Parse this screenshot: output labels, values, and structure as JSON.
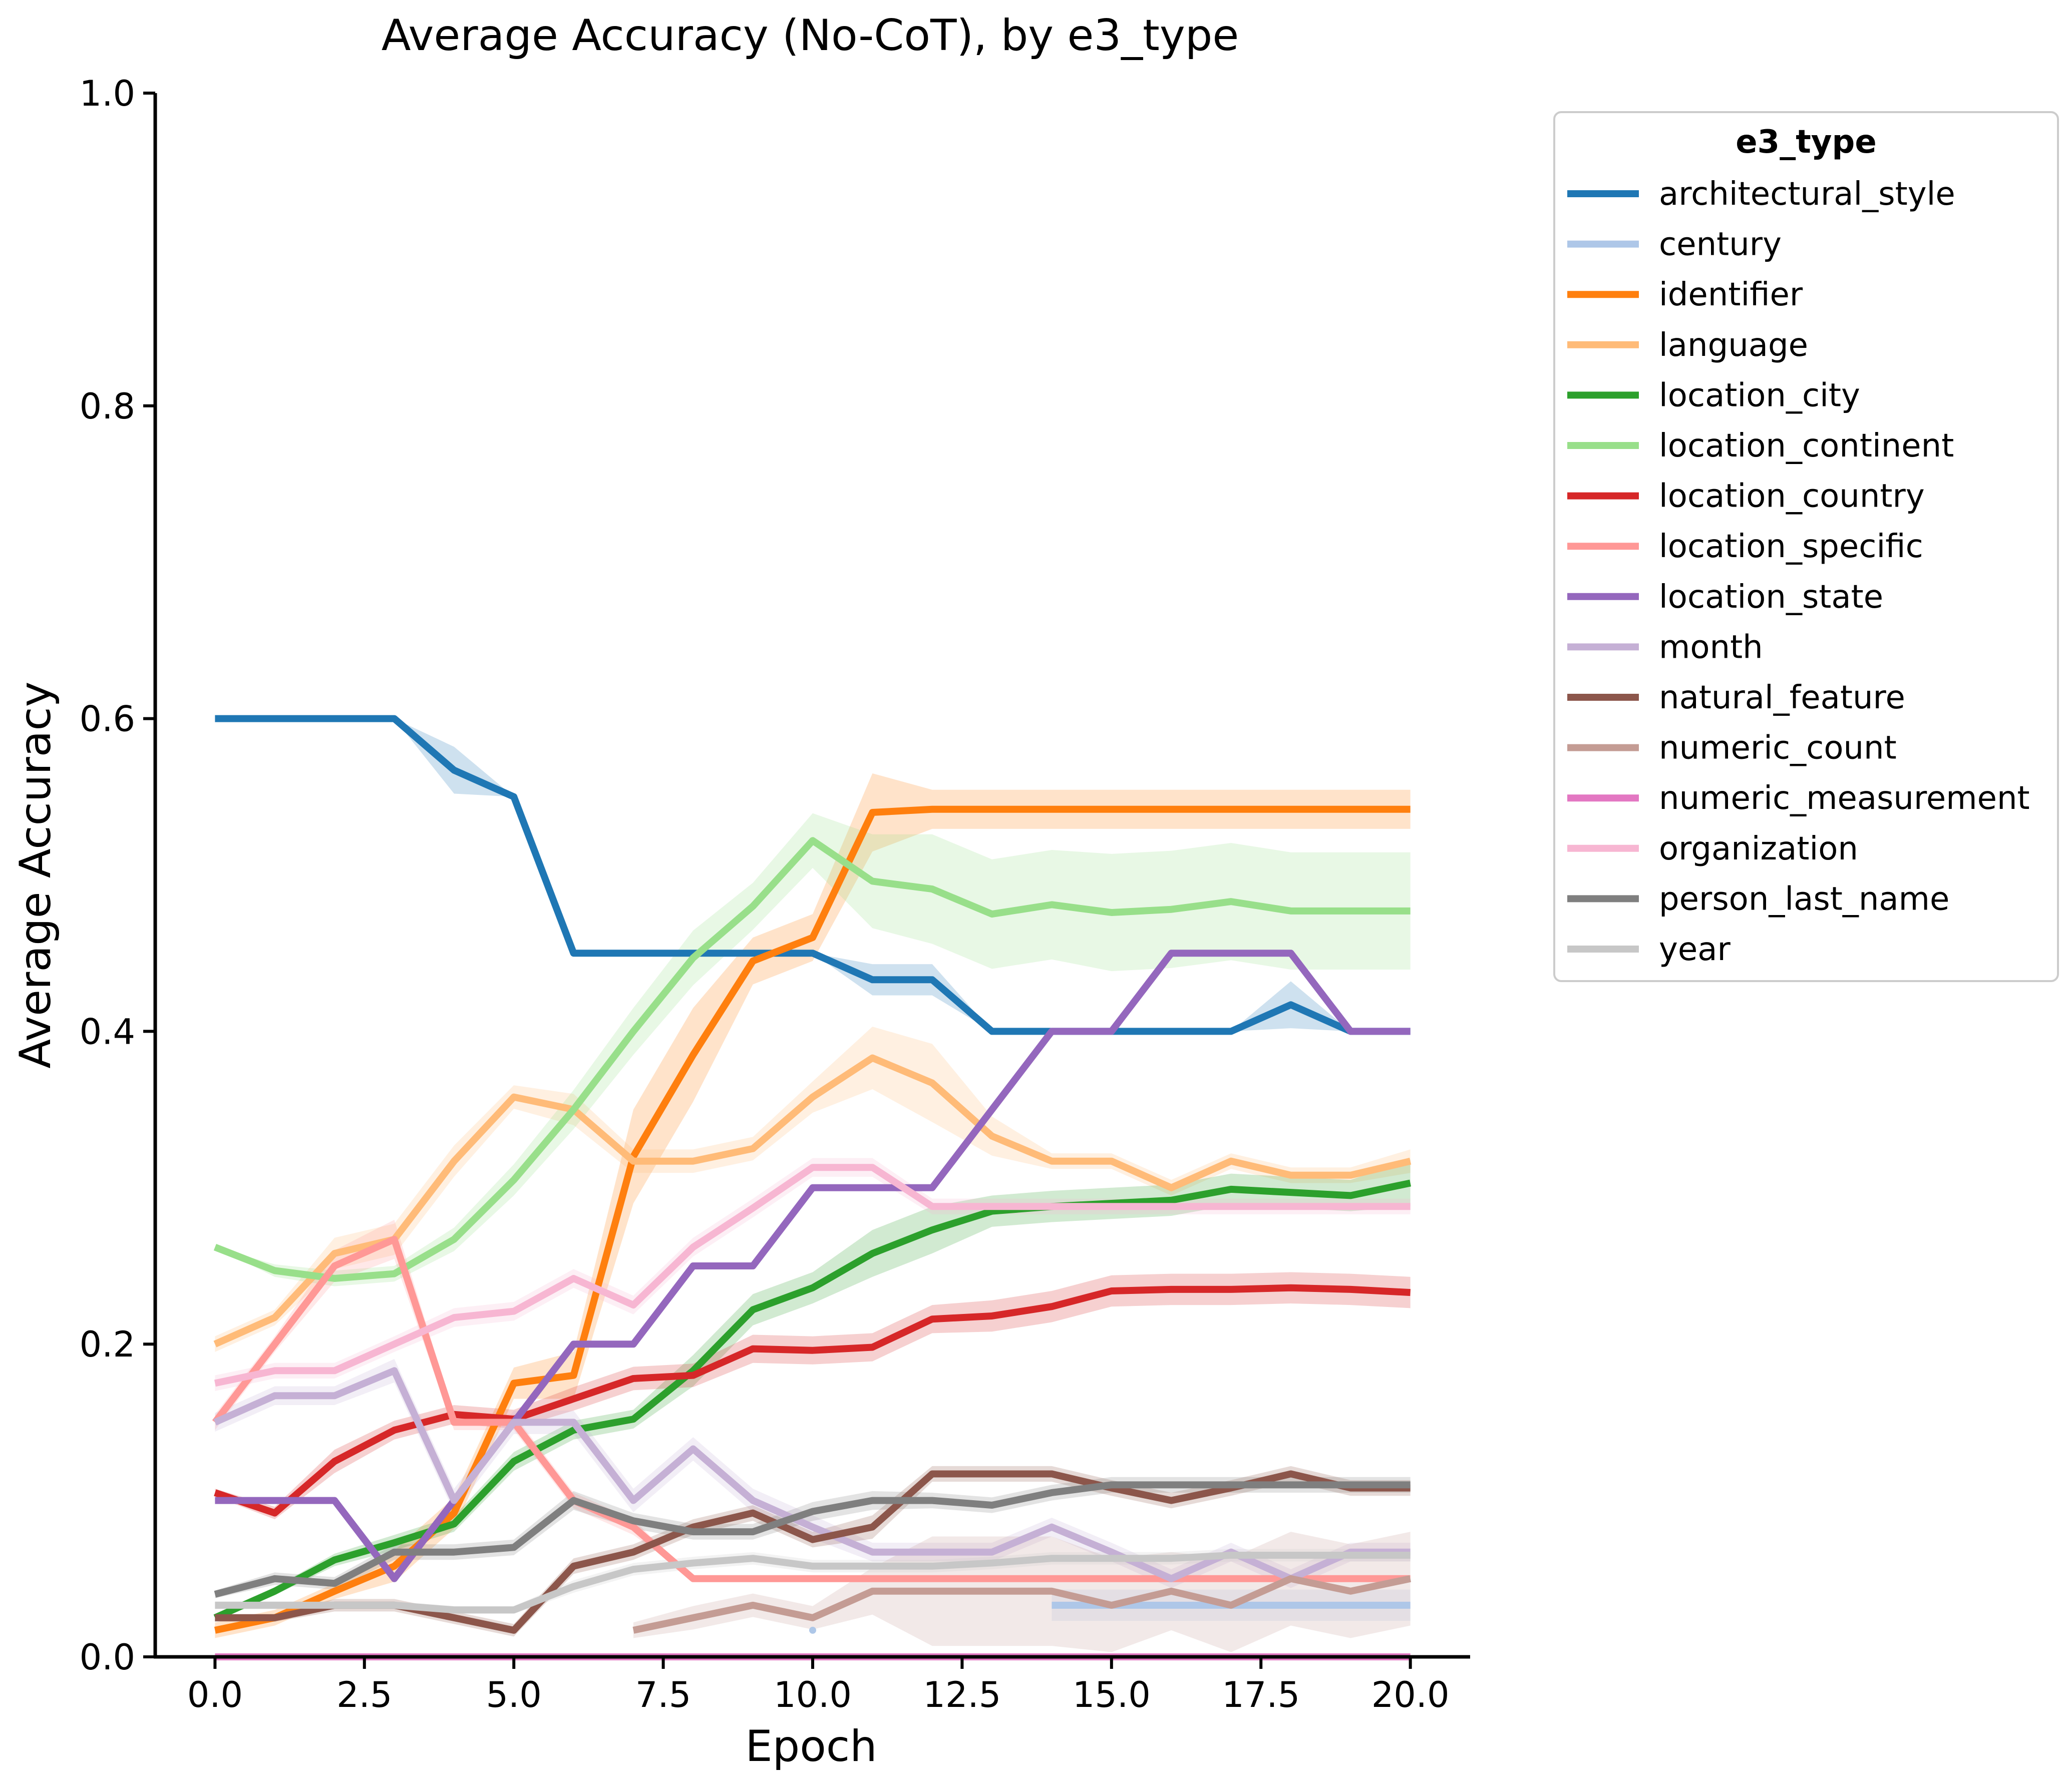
{
  "chart_data": {
    "type": "line",
    "title": "Average Accuracy (No-CoT), by e3_type",
    "xlabel": "Epoch",
    "ylabel": "Average Accuracy",
    "xlim": [
      -1,
      21
    ],
    "ylim": [
      0,
      1
    ],
    "x_ticks": [
      "0.0",
      "2.5",
      "5.0",
      "7.5",
      "10.0",
      "12.5",
      "15.0",
      "17.5",
      "20.0"
    ],
    "y_ticks": [
      "0.0",
      "0.2",
      "0.4",
      "0.6",
      "0.8",
      "1.0"
    ],
    "grid": false,
    "legend": {
      "title": "e3_type",
      "placement": "outside-right"
    },
    "x": [
      0,
      1,
      2,
      3,
      4,
      5,
      6,
      7,
      8,
      9,
      10,
      11,
      12,
      13,
      14,
      15,
      16,
      17,
      18,
      19,
      20
    ],
    "series": [
      {
        "name": "architectural_style",
        "color": "#1f77b4",
        "values": [
          0.6,
          0.6,
          0.6,
          0.6,
          0.567,
          0.55,
          0.45,
          0.45,
          0.45,
          0.45,
          0.45,
          0.433,
          0.433,
          0.4,
          0.4,
          0.4,
          0.4,
          0.4,
          0.417,
          0.4,
          0.4
        ],
        "ci_width": [
          0,
          0,
          0,
          0,
          0.03,
          0,
          0,
          0,
          0,
          0,
          0,
          0.02,
          0.02,
          0,
          0,
          0,
          0,
          0,
          0.03,
          0,
          0
        ]
      },
      {
        "name": "century",
        "color": "#aec7e8",
        "values": [
          null,
          null,
          null,
          null,
          null,
          null,
          null,
          null,
          null,
          null,
          0.017,
          null,
          null,
          null,
          0.033,
          0.033,
          0.033,
          0.033,
          0.033,
          0.033,
          0.033
        ],
        "ci_width": [
          0,
          0,
          0,
          0,
          0,
          0,
          0,
          0,
          0,
          0,
          0.02,
          0,
          0,
          0,
          0.02,
          0.02,
          0.02,
          0.02,
          0.02,
          0.02,
          0.02
        ]
      },
      {
        "name": "identifier",
        "color": "#ff7f0e",
        "values": [
          0.017,
          0.025,
          0.042,
          0.058,
          0.092,
          0.175,
          0.18,
          0.32,
          0.385,
          0.445,
          0.46,
          0.54,
          0.542,
          0.542,
          0.542,
          0.542,
          0.542,
          0.542,
          0.542,
          0.542,
          0.542
        ],
        "ci_width": [
          0.01,
          0.01,
          0.01,
          0.02,
          0.02,
          0.02,
          0.03,
          0.06,
          0.06,
          0.03,
          0.03,
          0.05,
          0.025,
          0.025,
          0.025,
          0.025,
          0.025,
          0.025,
          0.025,
          0.025,
          0.025
        ]
      },
      {
        "name": "language",
        "color": "#ffbb78",
        "values": [
          0.2,
          0.217,
          0.258,
          0.267,
          0.317,
          0.358,
          0.35,
          0.317,
          0.317,
          0.325,
          0.358,
          0.383,
          0.367,
          0.333,
          0.317,
          0.317,
          0.3,
          0.317,
          0.308,
          0.308,
          0.317
        ],
        "ci_width": [
          0.01,
          0.01,
          0.02,
          0.02,
          0.02,
          0.015,
          0.02,
          0.015,
          0.015,
          0.015,
          0.02,
          0.04,
          0.05,
          0.025,
          0.01,
          0.01,
          0.01,
          0.01,
          0.01,
          0.01,
          0.015
        ]
      },
      {
        "name": "location_city",
        "color": "#2ca02c",
        "values": [
          0.025,
          0.042,
          0.062,
          0.073,
          0.085,
          0.125,
          0.145,
          0.152,
          0.183,
          0.222,
          0.236,
          0.258,
          0.273,
          0.285,
          0.288,
          0.29,
          0.292,
          0.299,
          0.297,
          0.295,
          0.303
        ],
        "ci_width": [
          0.005,
          0.005,
          0.008,
          0.01,
          0.01,
          0.012,
          0.012,
          0.012,
          0.02,
          0.02,
          0.02,
          0.03,
          0.03,
          0.02,
          0.02,
          0.02,
          0.02,
          0.02,
          0.02,
          0.02,
          0.03
        ]
      },
      {
        "name": "location_continent",
        "color": "#98df8a",
        "values": [
          0.262,
          0.247,
          0.242,
          0.245,
          0.267,
          0.305,
          0.35,
          0.4,
          0.447,
          0.48,
          0.522,
          0.496,
          0.491,
          0.475,
          0.481,
          0.476,
          0.478,
          0.483,
          0.477,
          0.477,
          0.477
        ],
        "ci_width": [
          0,
          0.008,
          0.01,
          0.01,
          0.015,
          0.02,
          0.025,
          0.03,
          0.035,
          0.03,
          0.035,
          0.06,
          0.07,
          0.07,
          0.07,
          0.075,
          0.075,
          0.075,
          0.075,
          0.075,
          0.075
        ]
      },
      {
        "name": "location_country",
        "color": "#d62728",
        "values": [
          0.105,
          0.092,
          0.125,
          0.145,
          0.155,
          0.152,
          0.165,
          0.178,
          0.18,
          0.197,
          0.196,
          0.198,
          0.216,
          0.218,
          0.224,
          0.234,
          0.235,
          0.235,
          0.236,
          0.235,
          0.233
        ],
        "ci_width": [
          0.005,
          0.008,
          0.015,
          0.012,
          0.012,
          0.012,
          0.015,
          0.015,
          0.015,
          0.018,
          0.018,
          0.018,
          0.018,
          0.02,
          0.02,
          0.02,
          0.02,
          0.02,
          0.02,
          0.02,
          0.02
        ]
      },
      {
        "name": "location_specific",
        "color": "#ff9896",
        "values": [
          0.15,
          0.2,
          0.25,
          0.267,
          0.15,
          0.15,
          0.1,
          0.083,
          0.05,
          0.05,
          0.05,
          0.05,
          0.05,
          0.05,
          0.05,
          0.05,
          0.05,
          0.05,
          0.05,
          0.05,
          0.05
        ],
        "ci_width": [
          0.01,
          0.01,
          0.02,
          0.025,
          0.01,
          0.01,
          0.01,
          0.01,
          0,
          0,
          0,
          0,
          0,
          0,
          0,
          0,
          0,
          0,
          0,
          0,
          0
        ]
      },
      {
        "name": "location_state",
        "color": "#9467bd",
        "values": [
          0.1,
          0.1,
          0.1,
          0.05,
          0.1,
          0.15,
          0.2,
          0.2,
          0.25,
          0.25,
          0.3,
          0.3,
          0.3,
          0.35,
          0.4,
          0.4,
          0.45,
          0.45,
          0.45,
          0.4,
          0.4
        ],
        "ci_width": [
          0,
          0,
          0,
          0,
          0,
          0,
          0,
          0,
          0,
          0,
          0,
          0,
          0,
          0,
          0,
          0,
          0,
          0,
          0,
          0,
          0
        ]
      },
      {
        "name": "month",
        "color": "#c5b0d5",
        "values": [
          0.15,
          0.167,
          0.167,
          0.183,
          0.1,
          0.15,
          0.15,
          0.1,
          0.133,
          0.1,
          0.083,
          0.067,
          0.067,
          0.067,
          0.083,
          0.067,
          0.05,
          0.067,
          0.05,
          0.067,
          0.067
        ],
        "ci_width": [
          0.012,
          0.012,
          0.012,
          0.015,
          0.015,
          0.015,
          0.015,
          0.015,
          0.015,
          0.015,
          0.015,
          0.012,
          0.012,
          0.012,
          0.012,
          0.012,
          0.012,
          0.012,
          0.012,
          0.012,
          0.012
        ]
      },
      {
        "name": "natural_feature",
        "color": "#8c564b",
        "values": [
          0.025,
          0.025,
          0.033,
          0.033,
          0.025,
          0.017,
          0.058,
          0.067,
          0.083,
          0.092,
          0.075,
          0.083,
          0.117,
          0.117,
          0.117,
          0.108,
          0.1,
          0.108,
          0.117,
          0.108,
          0.108
        ],
        "ci_width": [
          0.005,
          0.005,
          0.008,
          0.008,
          0.008,
          0.008,
          0.01,
          0.01,
          0.01,
          0.01,
          0.01,
          0.015,
          0.01,
          0.01,
          0.01,
          0.01,
          0.01,
          0.01,
          0.01,
          0.01,
          0.01
        ]
      },
      {
        "name": "numeric_count",
        "color": "#c49c94",
        "values": [
          null,
          null,
          null,
          null,
          null,
          null,
          null,
          0.017,
          0.025,
          0.033,
          0.025,
          0.042,
          0.042,
          0.042,
          0.042,
          0.033,
          0.042,
          0.033,
          0.05,
          0.042,
          0.05
        ],
        "ci_width": [
          0,
          0,
          0,
          0,
          0,
          0,
          0,
          0.01,
          0.015,
          0.015,
          0.015,
          0.03,
          0.07,
          0.07,
          0.07,
          0.06,
          0.05,
          0.06,
          0.06,
          0.06,
          0.06
        ]
      },
      {
        "name": "numeric_measurement",
        "color": "#e377c2",
        "values": [
          0,
          0,
          0,
          0,
          0,
          0,
          0,
          0,
          0,
          0,
          0,
          0,
          0,
          0,
          0,
          0,
          0,
          0,
          0,
          0,
          0
        ],
        "ci_width": [
          0,
          0,
          0,
          0,
          0,
          0,
          0,
          0,
          0,
          0,
          0,
          0,
          0,
          0,
          0,
          0,
          0,
          0,
          0,
          0,
          0
        ]
      },
      {
        "name": "organization",
        "color": "#f7b6d2",
        "values": [
          0.175,
          0.183,
          0.183,
          0.2,
          0.217,
          0.221,
          0.242,
          0.225,
          0.262,
          0.287,
          0.313,
          0.313,
          0.288,
          0.288,
          0.288,
          0.288,
          0.288,
          0.288,
          0.288,
          0.288,
          0.288
        ],
        "ci_width": [
          0.01,
          0.01,
          0.01,
          0.01,
          0.012,
          0.012,
          0.012,
          0.012,
          0.012,
          0.012,
          0.012,
          0.012,
          0.01,
          0.01,
          0.01,
          0.01,
          0.01,
          0.01,
          0.01,
          0.01,
          0.01
        ]
      },
      {
        "name": "person_last_name",
        "color": "#7f7f7f",
        "values": [
          0.04,
          0.05,
          0.047,
          0.067,
          0.067,
          0.07,
          0.1,
          0.087,
          0.08,
          0.08,
          0.093,
          0.1,
          0.1,
          0.097,
          0.105,
          0.11,
          0.11,
          0.11,
          0.11,
          0.11,
          0.11
        ],
        "ci_width": [
          0.005,
          0.008,
          0.008,
          0.01,
          0.01,
          0.01,
          0.012,
          0.01,
          0.01,
          0.01,
          0.012,
          0.012,
          0.01,
          0.01,
          0.01,
          0.01,
          0.01,
          0.01,
          0.01,
          0.01,
          0.01
        ]
      },
      {
        "name": "year",
        "color": "#c7c7c7",
        "values": [
          0.033,
          0.033,
          0.033,
          0.033,
          0.03,
          0.03,
          0.045,
          0.056,
          0.06,
          0.063,
          0.058,
          0.058,
          0.058,
          0.06,
          0.063,
          0.063,
          0.063,
          0.065,
          0.065,
          0.065,
          0.065
        ],
        "ci_width": [
          0.005,
          0.005,
          0.005,
          0.005,
          0.005,
          0.005,
          0.008,
          0.008,
          0.008,
          0.008,
          0.008,
          0.008,
          0.008,
          0.008,
          0.008,
          0.008,
          0.008,
          0.008,
          0.008,
          0.008,
          0.008
        ]
      }
    ]
  }
}
